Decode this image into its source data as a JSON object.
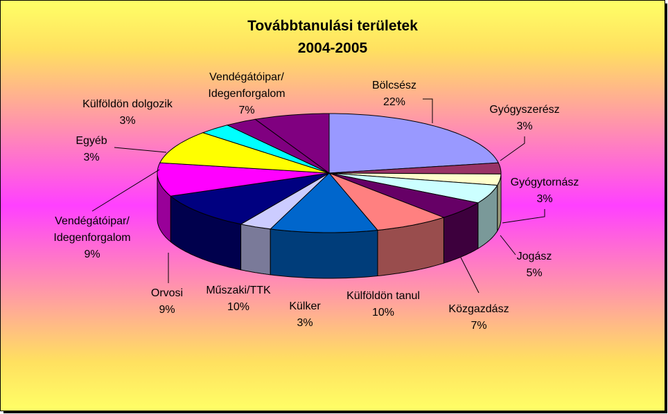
{
  "chart_data": {
    "type": "pie",
    "title": "Továbbtanulási területek",
    "subtitle": "2004-2005",
    "slices": [
      {
        "label": "Bölcsész",
        "percent_label": "22%",
        "value": 22,
        "color": "#9999ff",
        "side": "#5c5c99"
      },
      {
        "label": "Gyógyszerész",
        "percent_label": "3%",
        "value": 3,
        "color": "#993366",
        "side": "#5c1f3d"
      },
      {
        "label": "Gyógytornász",
        "percent_label": "3%",
        "value": 3,
        "color": "#ffffcc",
        "side": "#99997a"
      },
      {
        "label": "",
        "percent_label": "",
        "value": 5,
        "color": "#ccffff",
        "side": "#7a9999"
      },
      {
        "label": "Jogász",
        "percent_label": "5%",
        "value": 5,
        "color": "#660066",
        "side": "#3d003d"
      },
      {
        "label": "Közgazdász",
        "percent_label": "7%",
        "value": 7,
        "color": "#ff8080",
        "side": "#994d4d"
      },
      {
        "label": "Külföldön tanul",
        "percent_label": "10%",
        "value": 10,
        "color": "#0066cc",
        "side": "#003d7a"
      },
      {
        "label": "Külker",
        "percent_label": "3%",
        "value": 3,
        "color": "#ccccff",
        "side": "#7a7a99"
      },
      {
        "label": "Műszaki/TTK",
        "percent_label": "10%",
        "value": 10,
        "color": "#000080",
        "side": "#00004d"
      },
      {
        "label": "Orvosi",
        "percent_label": "9%",
        "value": 9,
        "color": "#ff00ff",
        "side": "#990099"
      },
      {
        "label": "Vendégátóipar/\nIdegenforgalom",
        "percent_label": "9%",
        "value": 9,
        "color": "#ffff00",
        "side": "#999900"
      },
      {
        "label": "Egyéb",
        "percent_label": "3%",
        "value": 3,
        "color": "#00ffff",
        "side": "#009999"
      },
      {
        "label": "Külföldön dolgozik",
        "percent_label": "3%",
        "value": 3,
        "color": "#800080",
        "side": "#4d004d"
      },
      {
        "label": "Vendégátóipar/\nIdegenforgalom",
        "percent_label": "7%",
        "value": 7,
        "color": "#800080",
        "side": "#4d004d"
      }
    ]
  },
  "labels": [
    {
      "lines": [
        "Bölcsész",
        "22%"
      ]
    },
    {
      "lines": [
        "Gyógyszerész",
        "3%"
      ]
    },
    {
      "lines": [
        "Gyógytornász",
        "3%"
      ]
    },
    {
      "lines": [
        "Jogász",
        "5%"
      ]
    },
    {
      "lines": [
        "Közgazdász",
        "7%"
      ]
    },
    {
      "lines": [
        "Külföldön tanul",
        "10%"
      ]
    },
    {
      "lines": [
        "Külker",
        "3%"
      ]
    },
    {
      "lines": [
        "Műszaki/TTK",
        "10%"
      ]
    },
    {
      "lines": [
        "Orvosi",
        "9%"
      ]
    },
    {
      "lines": [
        "Vendégátóipar/",
        "Idegenforgalom",
        "9%"
      ]
    },
    {
      "lines": [
        "Egyéb",
        "3%"
      ]
    },
    {
      "lines": [
        "Külföldön dolgozik",
        "3%"
      ]
    },
    {
      "lines": [
        "Vendégátóipar/",
        "Idegenforgalom",
        "7%"
      ]
    }
  ]
}
